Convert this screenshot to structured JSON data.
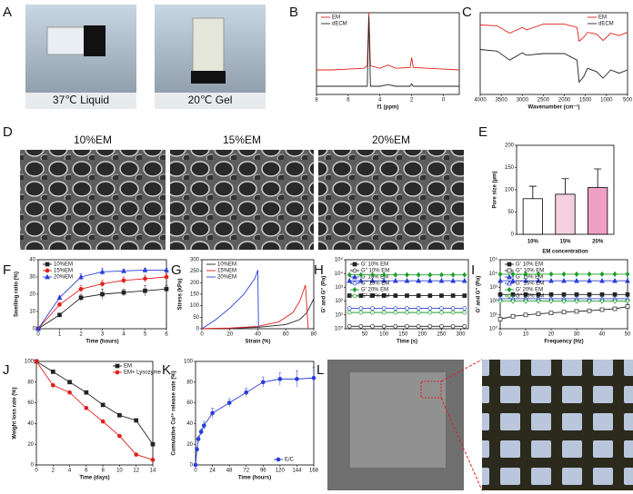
{
  "panel_labels": [
    "A",
    "B",
    "C",
    "D",
    "E",
    "F",
    "G",
    "H",
    "I",
    "J",
    "K",
    "L"
  ],
  "photos": {
    "a_left": "37℃  Liquid",
    "a_right": "20℃  Gel",
    "d": [
      "10%EM",
      "15%EM",
      "20%EM"
    ]
  },
  "chart_data": [
    {
      "type": "line",
      "xlabel": "f1 (ppm)",
      "xlim": [
        8,
        -1
      ],
      "xticks": [
        8,
        6,
        4,
        2,
        0
      ],
      "ylim": [
        0,
        10
      ],
      "legend": "upper left",
      "x": [
        8,
        7,
        6,
        5,
        4.8,
        4.7,
        4.6,
        4,
        3.5,
        3,
        2.1,
        2,
        1.9,
        1,
        0,
        -1
      ],
      "series": [
        {
          "name": "EM",
          "color": "#e0201c",
          "marker": "none",
          "values": [
            3,
            3,
            3.1,
            3.2,
            3.5,
            10,
            3.5,
            3.2,
            3.6,
            3.2,
            3.3,
            4.5,
            3.3,
            3.2,
            3.1,
            3
          ]
        },
        {
          "name": "dECM",
          "color": "#222222",
          "marker": "none",
          "values": [
            1,
            1,
            1,
            1,
            1,
            9.5,
            1,
            1,
            1.2,
            1,
            1,
            1.3,
            1,
            1,
            1,
            1
          ]
        }
      ]
    },
    {
      "type": "line",
      "xlabel": "Wavenumber (cm⁻¹)",
      "xlim": [
        4000,
        500
      ],
      "xticks": [
        4000,
        3500,
        3000,
        2500,
        2000,
        1500,
        1000,
        500
      ],
      "ylim": [
        0,
        10
      ],
      "legend": "upper right",
      "x": [
        4000,
        3600,
        3300,
        3000,
        2900,
        2500,
        2000,
        1700,
        1650,
        1540,
        1450,
        1240,
        1080,
        900,
        700,
        500
      ],
      "series": [
        {
          "name": "EM",
          "color": "#e0201c",
          "marker": "none",
          "values": [
            8.5,
            8.4,
            7.5,
            8.2,
            7.9,
            8.6,
            8.6,
            8.2,
            6.5,
            7,
            7.6,
            7.4,
            6.6,
            7.5,
            7.2,
            7.6
          ]
        },
        {
          "name": "dECM",
          "color": "#222222",
          "marker": "none",
          "values": [
            5.5,
            5.3,
            4.2,
            5.1,
            4.8,
            5,
            5,
            4.2,
            1.5,
            2.2,
            3.2,
            2.8,
            2,
            3,
            2.6,
            3
          ]
        }
      ]
    },
    {
      "type": "bar",
      "ylabel": "Pore size (μm)",
      "xlabel": "EM concentration",
      "categories": [
        "10%",
        "15%",
        "20%"
      ],
      "values": [
        80,
        90,
        105
      ],
      "errors": [
        28,
        35,
        42
      ],
      "colors": [
        "#ffffff",
        "#f4cfe0",
        "#ee9fc4"
      ],
      "ylim": [
        0,
        200
      ],
      "yticks": [
        0,
        50,
        100,
        150,
        200
      ]
    },
    {
      "type": "line",
      "xlabel": "Time (hours)",
      "ylabel": "Swelling ratio (%)",
      "xlim": [
        0,
        6
      ],
      "xticks": [
        0,
        1,
        2,
        3,
        4,
        5,
        6
      ],
      "ylim": [
        0,
        40
      ],
      "yticks": [
        0,
        10,
        20,
        30,
        40
      ],
      "legend": "upper left",
      "x": [
        0,
        1,
        2,
        3,
        4,
        5,
        6
      ],
      "series": [
        {
          "name": "10%EM",
          "color": "#222222",
          "marker": "square",
          "filled": true,
          "values": [
            0,
            8,
            18,
            20,
            21,
            22,
            23
          ],
          "errors": [
            0,
            1,
            2,
            3,
            2,
            3,
            2
          ]
        },
        {
          "name": "15%EM",
          "color": "#e0201c",
          "marker": "circle",
          "filled": true,
          "values": [
            0,
            14,
            23,
            26,
            28,
            29,
            30
          ],
          "errors": [
            0,
            1,
            2,
            2,
            2,
            2,
            2
          ]
        },
        {
          "name": "20%EM",
          "color": "#2a3fd6",
          "marker": "triangle",
          "filled": true,
          "values": [
            0,
            18,
            30,
            33,
            33.5,
            34,
            34
          ],
          "errors": [
            0,
            1,
            2,
            2,
            1,
            1,
            1
          ]
        }
      ]
    },
    {
      "type": "line",
      "xlabel": "Strain (%)",
      "ylabel": "Stress (kPa)",
      "xlim": [
        0,
        80
      ],
      "xticks": [
        0,
        20,
        40,
        60,
        80
      ],
      "ylim": [
        0,
        300
      ],
      "yticks": [
        0,
        50,
        100,
        150,
        200,
        250,
        300
      ],
      "legend": "upper left",
      "series": [
        {
          "name": "10%EM",
          "color": "#222222",
          "marker": "none",
          "x": [
            0,
            20,
            40,
            60,
            70,
            75,
            80
          ],
          "values": [
            0,
            2,
            6,
            18,
            40,
            70,
            130
          ]
        },
        {
          "name": "15%EM",
          "color": "#e0201c",
          "marker": "none",
          "x": [
            0,
            20,
            40,
            55,
            65,
            70,
            74,
            75,
            76
          ],
          "values": [
            0,
            3,
            10,
            30,
            70,
            120,
            190,
            100,
            0
          ]
        },
        {
          "name": "20%EM",
          "color": "#2a3fd6",
          "marker": "none",
          "x": [
            0,
            10,
            20,
            30,
            38,
            40,
            40.5
          ],
          "values": [
            0,
            40,
            90,
            150,
            220,
            255,
            0
          ]
        }
      ]
    },
    {
      "type": "line",
      "xlabel": "Time (s)",
      "ylabel": "G' and G'' (Pa)",
      "log_y": true,
      "xlim": [
        0,
        320
      ],
      "xticks": [
        50,
        100,
        150,
        200,
        250,
        300
      ],
      "ylim": [
        1,
        100000
      ],
      "yticks": [
        {
          "value": 1,
          "label": "10⁰"
        },
        {
          "value": 10,
          "label": "10¹"
        },
        {
          "value": 100,
          "label": "10²"
        },
        {
          "value": 1000,
          "label": "10³"
        },
        {
          "value": 10000,
          "label": "10⁴"
        },
        {
          "value": 100000,
          "label": "10⁵"
        }
      ],
      "legend": "upper left",
      "x": [
        10,
        40,
        70,
        100,
        130,
        160,
        190,
        220,
        250,
        280,
        310
      ],
      "series": [
        {
          "name": "G' 10% EM",
          "color": "#222222",
          "marker": "square",
          "filled": true,
          "values": [
            250,
            250,
            250,
            250,
            250,
            250,
            250,
            250,
            250,
            250,
            250
          ]
        },
        {
          "name": "G'' 10% EM",
          "color": "#222222",
          "marker": "circle",
          "filled": false,
          "values": [
            1.5,
            1.5,
            1.5,
            1.5,
            1.5,
            1.5,
            1.5,
            1.5,
            1.5,
            1.5,
            1.5
          ]
        },
        {
          "name": "G' 15% EM",
          "color": "#2a3fd6",
          "marker": "triangle",
          "filled": true,
          "values": [
            3000,
            3000,
            3000,
            3000,
            3000,
            3000,
            3000,
            3000,
            3000,
            3000,
            3000
          ]
        },
        {
          "name": "G'' 15% EM",
          "color": "#2a3fd6",
          "marker": "circle",
          "filled": false,
          "values": [
            30,
            30,
            30,
            30,
            30,
            30,
            30,
            30,
            30,
            30,
            30
          ]
        },
        {
          "name": "G' 20% EM",
          "color": "#1f9e2c",
          "marker": "diamond",
          "filled": true,
          "values": [
            8000,
            8000,
            8000,
            8000,
            8000,
            8000,
            8000,
            8000,
            8000,
            8000,
            8000
          ]
        },
        {
          "name": "G'' 20% EM",
          "color": "#1f9e2c",
          "marker": "circle",
          "filled": false,
          "values": [
            15,
            15,
            15,
            15,
            15,
            15,
            15,
            15,
            15,
            15,
            15
          ]
        }
      ]
    },
    {
      "type": "line",
      "xlabel": "Frequency (Hz)",
      "ylabel": "G' and G'' (Pa)",
      "log_y": true,
      "xlim": [
        0,
        50
      ],
      "xticks": [
        0,
        10,
        20,
        30,
        40,
        50
      ],
      "ylim": [
        1,
        100000
      ],
      "yticks": [
        {
          "value": 1,
          "label": "10⁰"
        },
        {
          "value": 10,
          "label": "10¹"
        },
        {
          "value": 100,
          "label": "10²"
        },
        {
          "value": 1000,
          "label": "10³"
        },
        {
          "value": 10000,
          "label": "10⁴"
        },
        {
          "value": 100000,
          "label": "10⁵"
        }
      ],
      "legend": "upper left",
      "x": [
        0,
        5,
        10,
        15,
        20,
        25,
        30,
        35,
        40,
        45,
        50
      ],
      "series": [
        {
          "name": "G' 10% EM",
          "color": "#222222",
          "marker": "square",
          "filled": true,
          "values": [
            300,
            300,
            300,
            300,
            300,
            300,
            300,
            300,
            300,
            300,
            300
          ]
        },
        {
          "name": "G'' 10% EM",
          "color": "#222222",
          "marker": "square",
          "filled": false,
          "values": [
            5,
            8,
            10,
            12,
            14,
            16,
            18,
            20,
            24,
            28,
            40
          ]
        },
        {
          "name": "G' 15% EM",
          "color": "#2a3fd6",
          "marker": "triangle",
          "filled": true,
          "values": [
            3000,
            3000,
            3000,
            3000,
            3000,
            3000,
            3000,
            3000,
            3000,
            3000,
            3000
          ]
        },
        {
          "name": "G'' 15% EM",
          "color": "#2a3fd6",
          "marker": "triangle",
          "filled": false,
          "values": [
            150,
            150,
            150,
            150,
            150,
            150,
            150,
            150,
            150,
            150,
            150
          ]
        },
        {
          "name": "G' 20% EM",
          "color": "#1f9e2c",
          "marker": "diamond",
          "filled": true,
          "values": [
            9000,
            9000,
            9000,
            9000,
            9000,
            9000,
            9000,
            9000,
            9000,
            9000,
            9000
          ]
        },
        {
          "name": "G'' 20% EM",
          "color": "#1f9e2c",
          "marker": "diamond",
          "filled": false,
          "values": [
            100,
            100,
            100,
            100,
            100,
            100,
            100,
            100,
            100,
            100,
            100
          ]
        }
      ]
    },
    {
      "type": "line",
      "xlabel": "Time (days)",
      "ylabel": "Weight loss rate (%)",
      "xlim": [
        0,
        14
      ],
      "xticks": [
        0,
        2,
        4,
        6,
        8,
        10,
        12,
        14
      ],
      "ylim": [
        0,
        100
      ],
      "yticks": [
        0,
        20,
        40,
        60,
        80,
        100
      ],
      "legend": "upper right",
      "x": [
        0,
        2,
        4,
        6,
        8,
        10,
        12,
        14
      ],
      "series": [
        {
          "name": "EM",
          "color": "#222222",
          "marker": "square",
          "filled": true,
          "values": [
            100,
            90,
            80,
            70,
            58,
            48,
            43,
            20
          ]
        },
        {
          "name": "EM+ Lysozyme",
          "color": "#e0201c",
          "marker": "circle",
          "filled": true,
          "values": [
            100,
            77,
            70,
            55,
            42,
            28,
            10,
            5
          ]
        }
      ]
    },
    {
      "type": "line",
      "xlabel": "Time (hours)",
      "ylabel": "Cumulative Cu²⁺ release rate (%)",
      "xlim": [
        0,
        168
      ],
      "xticks": [
        0,
        24,
        48,
        72,
        96,
        120,
        144,
        168
      ],
      "ylim": [
        0,
        100
      ],
      "yticks": [
        0,
        20,
        40,
        60,
        80,
        100
      ],
      "legend": "lower right",
      "x": [
        0,
        2,
        4,
        8,
        12,
        24,
        48,
        72,
        96,
        120,
        144,
        168
      ],
      "series": [
        {
          "name": "E/C",
          "color": "#2a3fd6",
          "marker": "circle",
          "filled": true,
          "values": [
            0,
            15,
            25,
            32,
            38,
            50,
            60,
            70,
            80,
            83,
            83,
            84
          ],
          "errors": [
            0,
            2,
            3,
            3,
            4,
            5,
            4,
            4,
            5,
            6,
            8,
            10
          ]
        }
      ]
    }
  ]
}
